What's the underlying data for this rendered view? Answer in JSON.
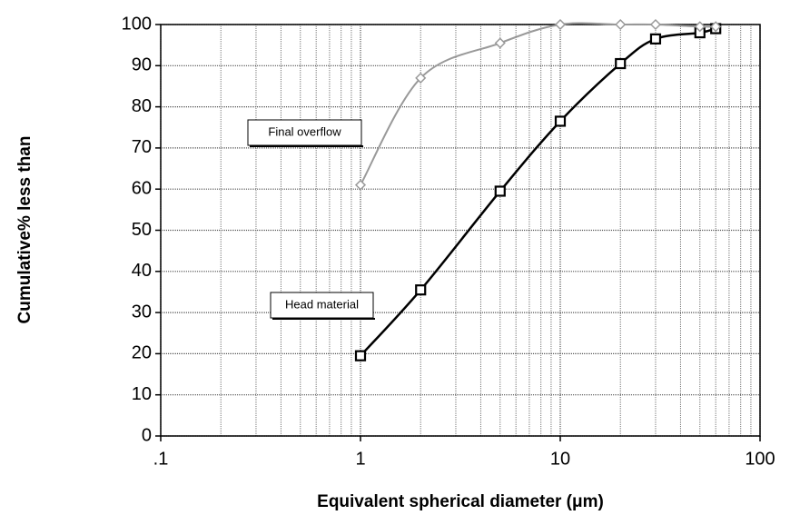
{
  "chart_data": {
    "type": "line",
    "x_label": "Equivalent spherical diameter (μm)",
    "y_label": "Cumulative% less than",
    "x_scale": "log",
    "xlim": [
      0.1,
      100
    ],
    "xticks": [
      {
        "value": 0.1,
        "label": ".1"
      },
      1,
      10,
      100
    ],
    "x_minor_ticks": [
      0.2,
      0.3,
      0.4,
      0.5,
      0.6,
      0.7,
      0.8,
      0.9,
      2,
      3,
      4,
      5,
      6,
      7,
      8,
      9,
      20,
      30,
      40,
      50,
      60,
      70,
      80,
      90
    ],
    "ylim": [
      0,
      100
    ],
    "yticks": [
      0,
      10,
      20,
      30,
      40,
      50,
      60,
      70,
      80,
      90,
      100
    ],
    "grid": true,
    "series": [
      {
        "name": "Head material",
        "color": "#000000",
        "marker": "square",
        "x": [
          1,
          2,
          5,
          10,
          20,
          30,
          50,
          60
        ],
        "values": [
          19.5,
          35.5,
          59.5,
          76.5,
          90.5,
          96.5,
          98,
          99
        ]
      },
      {
        "name": "Final overflow",
        "color": "#999999",
        "marker": "diamond",
        "x": [
          1,
          2,
          5,
          10,
          20,
          30,
          50,
          60
        ],
        "values": [
          61,
          87,
          95.5,
          100,
          100,
          100,
          99.5,
          99.5
        ]
      }
    ]
  }
}
